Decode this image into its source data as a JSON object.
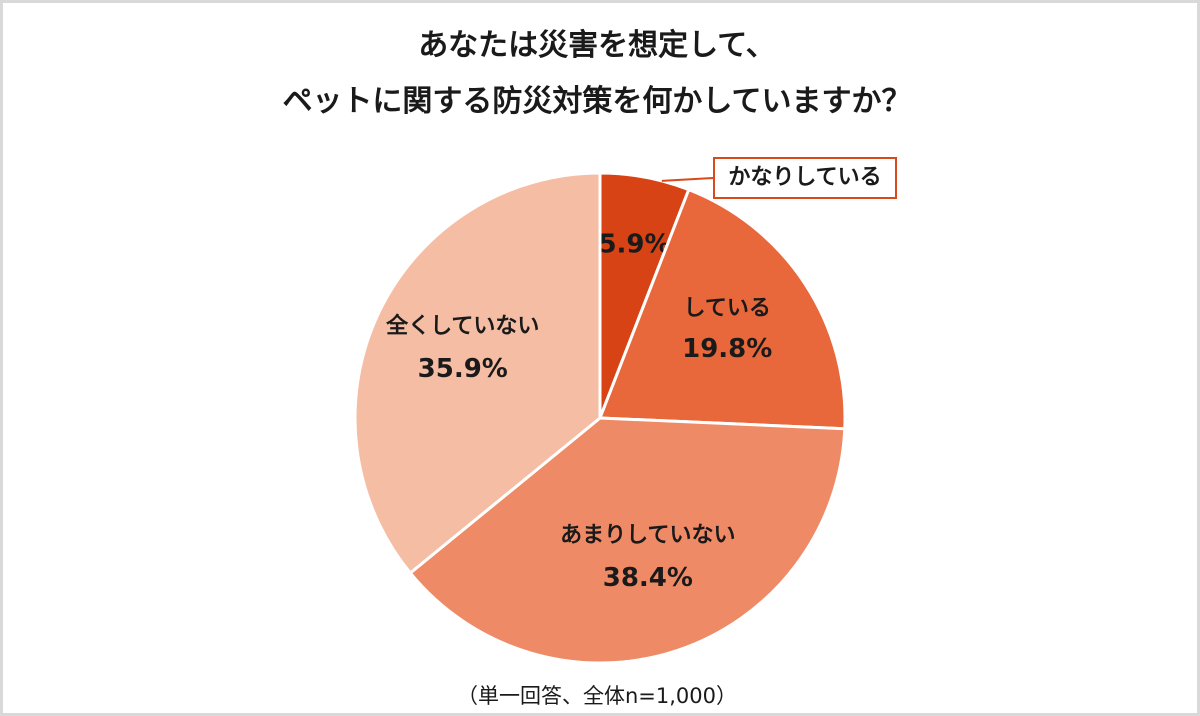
{
  "title": {
    "line1": "あなたは災害を想定して、",
    "line2": "ペットに関する防災対策を何かしていますか？"
  },
  "chart_data": {
    "type": "pie",
    "title": "あなたは災害を想定して、ペットに関する防災対策を何かしていますか？",
    "slices": [
      {
        "label": "かなりしている",
        "value": 5.9,
        "display": "5.9%",
        "color": "#d84315",
        "label_in_callout": true
      },
      {
        "label": "している",
        "value": 19.8,
        "display": "19.8%",
        "color": "#e8683b",
        "label_in_callout": false
      },
      {
        "label": "あまりしていない",
        "value": 38.4,
        "display": "38.4%",
        "color": "#ef8a66",
        "label_in_callout": false
      },
      {
        "label": "全くしていない",
        "value": 35.9,
        "display": "35.9%",
        "color": "#f5bda3",
        "label_in_callout": false
      }
    ],
    "start_angle": "12 o'clock",
    "direction": "clockwise",
    "legend": "none",
    "slice_border_color": "#ffffff"
  },
  "callout": {
    "label": "かなりしている",
    "border_color": "#d84a1b"
  },
  "footnote": "（単一回答、全体n=1,000）"
}
